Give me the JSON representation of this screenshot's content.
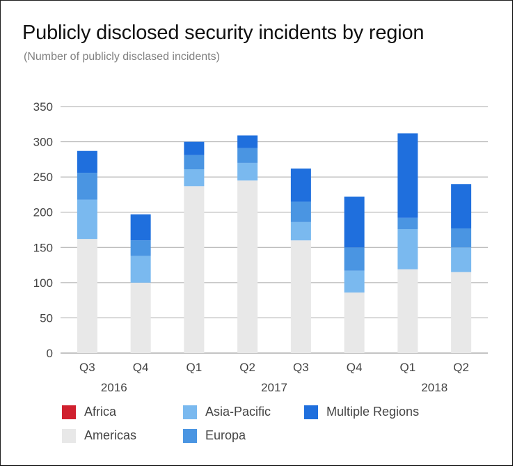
{
  "chart_data": {
    "type": "bar",
    "stacked": true,
    "title": "Publicly disclosed security incidents by region",
    "subtitle": "(Number of publicly disclased incidents)",
    "categories": [
      "Q3",
      "Q4",
      "Q1",
      "Q2",
      "Q3",
      "Q4",
      "Q1",
      "Q2"
    ],
    "year_groups": [
      {
        "label": "2016",
        "start": 0,
        "end": 1
      },
      {
        "label": "2017",
        "start": 2,
        "end": 5
      },
      {
        "label": "2018",
        "start": 6,
        "end": 7
      }
    ],
    "ylim": [
      0,
      350
    ],
    "yticks": [
      0,
      50,
      100,
      150,
      200,
      250,
      300,
      350
    ],
    "grid": true,
    "legend_position": "bottom",
    "series": [
      {
        "name": "Americas",
        "color": "#e8e8e8",
        "values": [
          162,
          100,
          237,
          245,
          160,
          86,
          119,
          115
        ]
      },
      {
        "name": "Africa",
        "color": "#d0202e",
        "values": [
          0,
          0,
          0,
          0,
          0,
          0,
          0,
          0
        ]
      },
      {
        "name": "Asia-Pacific",
        "color": "#7ab9ef",
        "values": [
          56,
          38,
          24,
          25,
          26,
          31,
          57,
          35
        ]
      },
      {
        "name": "Europa",
        "color": "#4a95e2",
        "values": [
          38,
          22,
          20,
          21,
          29,
          33,
          16,
          27
        ]
      },
      {
        "name": "Multiple Regions",
        "color": "#1f6fdd",
        "values": [
          31,
          37,
          19,
          18,
          47,
          72,
          120,
          63
        ]
      }
    ],
    "legend_order": [
      "Africa",
      "Americas",
      "Asia-Pacific",
      "Europa",
      "Multiple Regions"
    ]
  }
}
